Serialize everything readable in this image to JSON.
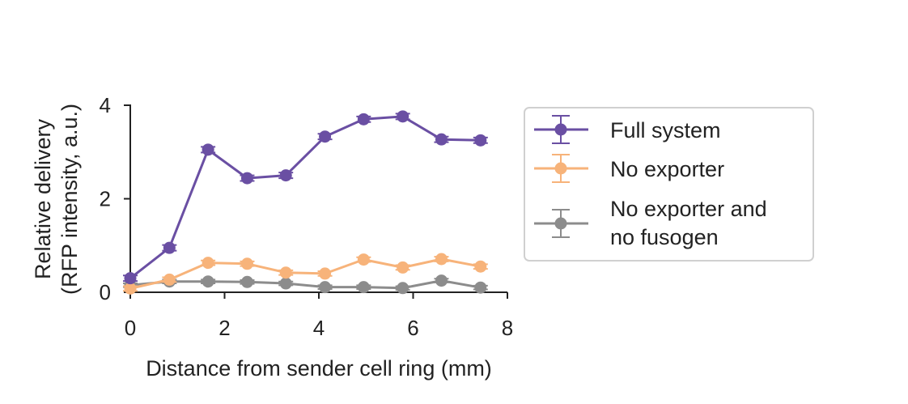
{
  "chart_data": {
    "type": "line",
    "xlabel": "Distance from sender cell ring (mm)",
    "ylabel_lines": [
      "Relative delivery",
      "(RFP intensity, a.u.)"
    ],
    "xlim": [
      0,
      8
    ],
    "ylim": [
      0,
      4
    ],
    "xticks": [
      0,
      2,
      4,
      6,
      8
    ],
    "yticks": [
      0,
      2,
      4
    ],
    "grid": false,
    "legend_position": "right",
    "x": [
      0,
      0.83,
      1.65,
      2.48,
      3.3,
      4.13,
      4.95,
      5.78,
      6.6,
      7.43
    ],
    "series": [
      {
        "name": "Full system",
        "color": "#6a4fa3",
        "values": [
          0.3,
          0.95,
          3.05,
          2.44,
          2.5,
          3.33,
          3.7,
          3.76,
          3.27,
          3.25
        ],
        "errors": [
          0.06,
          0.06,
          0.06,
          0.06,
          0.06,
          0.06,
          0.06,
          0.06,
          0.06,
          0.06
        ]
      },
      {
        "name": "No exporter",
        "color": "#f7b37a",
        "values": [
          0.08,
          0.27,
          0.63,
          0.61,
          0.42,
          0.4,
          0.7,
          0.53,
          0.71,
          0.55
        ],
        "errors": [
          0.05,
          0.05,
          0.05,
          0.05,
          0.05,
          0.05,
          0.05,
          0.05,
          0.05,
          0.05
        ]
      },
      {
        "name_lines": [
          "No exporter and",
          "no fusogen"
        ],
        "color": "#8c8c8c",
        "values": [
          0.15,
          0.23,
          0.23,
          0.22,
          0.19,
          0.11,
          0.11,
          0.09,
          0.25,
          0.1
        ],
        "errors": [
          0.04,
          0.04,
          0.04,
          0.04,
          0.04,
          0.04,
          0.04,
          0.04,
          0.04,
          0.04
        ]
      }
    ]
  }
}
